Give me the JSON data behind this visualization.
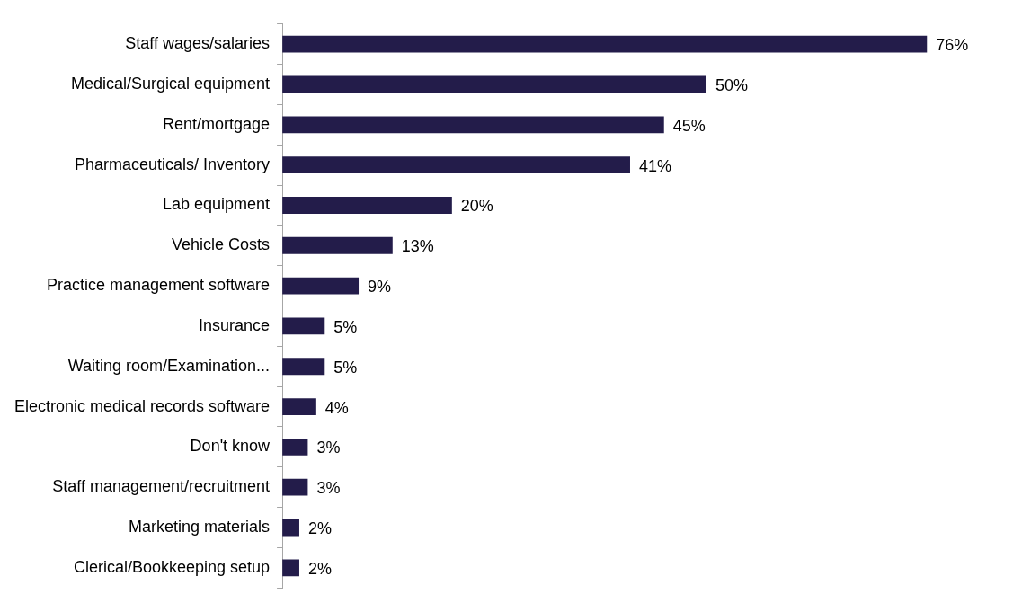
{
  "chart_data": {
    "type": "bar",
    "orientation": "horizontal",
    "categories": [
      "Staff wages/salaries",
      "Medical/Surgical equipment",
      "Rent/mortgage",
      "Pharmaceuticals/ Inventory",
      "Lab equipment",
      "Vehicle Costs",
      "Practice management software",
      "Insurance",
      "Waiting room/Examination...",
      "Electronic medical records software",
      "Don't know",
      "Staff management/recruitment",
      "Marketing materials",
      "Clerical/Bookkeeping setup"
    ],
    "values": [
      76,
      50,
      45,
      41,
      20,
      13,
      9,
      5,
      5,
      4,
      3,
      3,
      2,
      2
    ],
    "value_labels": [
      "76%",
      "50%",
      "45%",
      "41%",
      "20%",
      "13%",
      "9%",
      "5%",
      "5%",
      "4%",
      "3%",
      "3%",
      "2%",
      "2%"
    ],
    "color": "#231c4a",
    "legend": false
  }
}
